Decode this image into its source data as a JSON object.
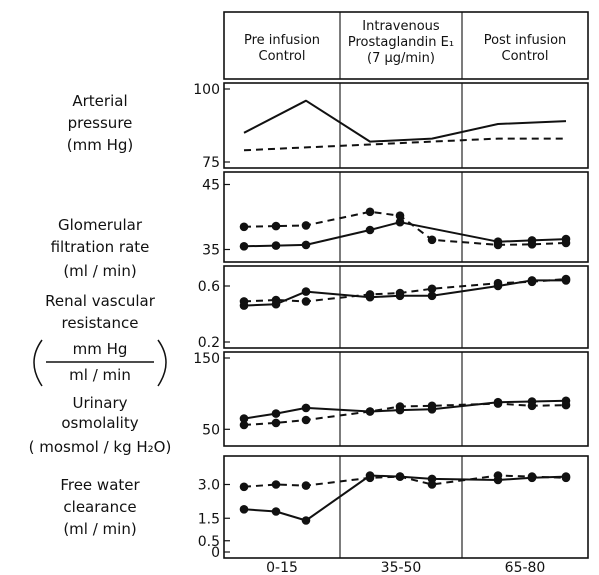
{
  "header": {
    "periods": [
      {
        "lines": [
          "Pre infusion",
          "Control"
        ]
      },
      {
        "lines": [
          "Intravenous",
          "Prostaglandin E₁",
          "(7 μg/min)"
        ]
      },
      {
        "lines": [
          "Post infusion",
          "Control"
        ]
      }
    ]
  },
  "x_axis": {
    "tick_labels": [
      "0-15",
      "35-50",
      "65-80"
    ]
  },
  "chart_data": [
    {
      "type": "line",
      "id": "arterial",
      "label_lines": [
        "Arterial",
        "pressure",
        "(mm Hg)"
      ],
      "ylim": [
        75,
        100
      ],
      "yticks": [
        {
          "value": 100,
          "label": "100"
        },
        {
          "value": 75,
          "label": "75"
        }
      ],
      "x": [
        1,
        2,
        3,
        4,
        5,
        6
      ],
      "series": [
        {
          "style": "solid",
          "markers": false,
          "values": [
            85,
            96,
            82,
            83,
            88,
            89
          ]
        },
        {
          "style": "dashed",
          "markers": false,
          "values": [
            79,
            80,
            81,
            82,
            83,
            83
          ]
        }
      ]
    },
    {
      "type": "line",
      "id": "gfr",
      "label_lines": [
        "Glomerular",
        "filtration rate",
        "(ml / min)"
      ],
      "ylim": [
        34,
        46
      ],
      "yticks": [
        {
          "value": 45,
          "label": "45"
        },
        {
          "value": 35,
          "label": "35"
        }
      ],
      "x": [
        1,
        1.5,
        2,
        3,
        3.5,
        4,
        5,
        5.5,
        6
      ],
      "series": [
        {
          "style": "solid",
          "markers": true,
          "values": [
            35.5,
            35.6,
            35.7,
            38.0,
            39.2,
            null,
            36.2,
            36.4,
            36.6
          ]
        },
        {
          "style": "dashed",
          "markers": true,
          "values": [
            38.5,
            38.6,
            38.7,
            40.8,
            40.2,
            36.5,
            35.7,
            35.8,
            36.0
          ]
        }
      ]
    },
    {
      "type": "line",
      "id": "rvr",
      "label_lines": [
        "Renal vascular",
        "resistance"
      ],
      "unit_fraction": {
        "numerator": "mm Hg",
        "denominator": "ml / min"
      },
      "ylim": [
        0.2,
        0.7
      ],
      "yticks": [
        {
          "value": 0.6,
          "label": "0.6"
        },
        {
          "value": 0.2,
          "label": "0.2"
        }
      ],
      "x": [
        1,
        1.5,
        2,
        3,
        3.5,
        4,
        5,
        5.5,
        6
      ],
      "series": [
        {
          "style": "solid",
          "markers": true,
          "values": [
            0.46,
            0.47,
            0.56,
            0.52,
            0.53,
            0.53,
            0.6,
            0.64,
            0.64
          ]
        },
        {
          "style": "dashed",
          "markers": true,
          "values": [
            0.49,
            0.5,
            0.49,
            0.54,
            0.55,
            0.58,
            0.62,
            0.63,
            0.65
          ]
        }
      ]
    },
    {
      "type": "line",
      "id": "osmolality",
      "label_lines": [
        "Urinary",
        "osmolality",
        "( mosmol / kg H₂O)"
      ],
      "ylim": [
        35,
        150
      ],
      "yticks": [
        {
          "value": 150,
          "label": "150"
        },
        {
          "value": 50,
          "label": "50"
        }
      ],
      "x": [
        1,
        1.5,
        2,
        3,
        3.5,
        4,
        5,
        5.5,
        6
      ],
      "series": [
        {
          "style": "solid",
          "markers": true,
          "values": [
            65,
            72,
            80,
            75,
            77,
            78,
            88,
            89,
            90
          ]
        },
        {
          "style": "dashed",
          "markers": true,
          "values": [
            56,
            59,
            63,
            75,
            82,
            83,
            86,
            83,
            84
          ]
        }
      ]
    },
    {
      "type": "line",
      "id": "fwc",
      "label_lines": [
        "Free water",
        "clearance",
        "(ml / min)"
      ],
      "ylim": [
        0,
        4
      ],
      "yticks": [
        {
          "value": 3.0,
          "label": "3.0"
        },
        {
          "value": 1.5,
          "label": "1.5"
        },
        {
          "value": 0.5,
          "label": "0.5"
        },
        {
          "value": 0,
          "label": "0"
        }
      ],
      "x": [
        1,
        1.5,
        2,
        3,
        3.5,
        4,
        5,
        5.5,
        6
      ],
      "series": [
        {
          "style": "solid",
          "markers": true,
          "values": [
            1.9,
            1.8,
            1.4,
            3.4,
            3.35,
            3.25,
            3.2,
            3.3,
            3.35
          ]
        },
        {
          "style": "dashed",
          "markers": true,
          "values": [
            2.9,
            3.0,
            2.95,
            3.3,
            3.35,
            3.0,
            3.4,
            3.35,
            3.3
          ]
        }
      ]
    }
  ]
}
